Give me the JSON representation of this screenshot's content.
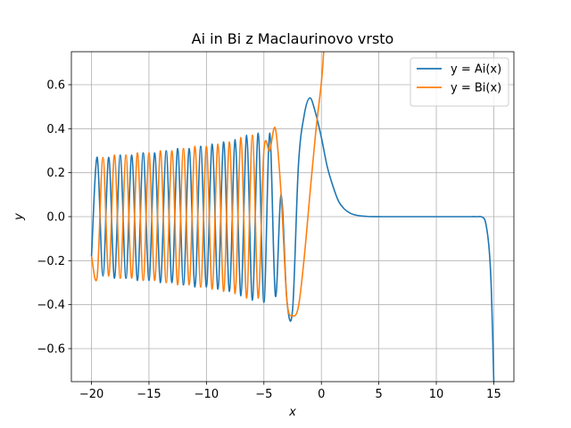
{
  "chart_data": {
    "type": "line",
    "title": "Ai in Bi z Maclaurinovo vrsto",
    "xlabel": "x",
    "ylabel": "y",
    "xlim": [
      -21.75,
      16.75
    ],
    "ylim": [
      -0.75,
      0.75
    ],
    "xticks": [
      -20,
      -15,
      -10,
      -5,
      0,
      5,
      10,
      15
    ],
    "yticks": [
      -0.6,
      -0.4,
      -0.2,
      0.0,
      0.2,
      0.4,
      0.6
    ],
    "xtick_labels": [
      "−20",
      "−15",
      "−10",
      "−5",
      "0",
      "5",
      "10",
      "15"
    ],
    "ytick_labels": [
      "−0.6",
      "−0.4",
      "−0.2",
      "0.0",
      "0.2",
      "0.4",
      "0.6"
    ],
    "grid": true,
    "legend_position": "top-right",
    "series": [
      {
        "name": "y = Ai(x)",
        "color": "#1f77b4",
        "x": [
          -20,
          -19.5,
          -19.0,
          -18.5,
          -18.0,
          -17.5,
          -17.0,
          -16.5,
          -16.0,
          -15.5,
          -15.0,
          -14.5,
          -14.0,
          -13.5,
          -13.0,
          -12.5,
          -12.0,
          -11.5,
          -11.0,
          -10.5,
          -10.0,
          -9.5,
          -9.0,
          -8.5,
          -8.0,
          -7.5,
          -7.0,
          -6.5,
          -6.0,
          -5.5,
          -5.0,
          -4.5,
          -4.0,
          -3.5,
          -3.0,
          -2.5,
          -2.0,
          -1.5,
          -1.0,
          -0.5,
          0.0,
          0.5,
          1.0,
          1.5,
          2.0,
          2.5,
          3.0,
          4.0,
          5.0,
          6.0,
          8.0,
          10.0,
          12.0,
          13.0,
          13.5,
          14.0,
          14.3,
          14.6,
          14.8,
          15.0
        ],
        "values": [
          -0.18,
          0.27,
          -0.27,
          0.27,
          -0.28,
          0.28,
          -0.28,
          0.28,
          -0.29,
          0.29,
          -0.29,
          0.29,
          -0.3,
          0.3,
          -0.3,
          0.31,
          -0.31,
          0.31,
          -0.32,
          0.32,
          -0.32,
          0.33,
          -0.33,
          0.34,
          -0.34,
          0.35,
          -0.36,
          0.37,
          -0.38,
          0.38,
          -0.39,
          0.38,
          -0.36,
          0.1,
          -0.38,
          -0.42,
          0.23,
          0.46,
          0.54,
          0.47,
          0.36,
          0.23,
          0.14,
          0.07,
          0.035,
          0.016,
          0.007,
          0.001,
          0.0001,
          0.0,
          0.0,
          0.0,
          0.0,
          0.0,
          0.0,
          -0.002,
          -0.03,
          -0.15,
          -0.35,
          -0.75
        ]
      },
      {
        "name": "y = Bi(x)",
        "color": "#ff7f0e",
        "x": [
          -20,
          -19.5,
          -19.0,
          -18.5,
          -18.0,
          -17.5,
          -17.0,
          -16.5,
          -16.0,
          -15.5,
          -15.0,
          -14.5,
          -14.0,
          -13.5,
          -13.0,
          -12.5,
          -12.0,
          -11.5,
          -11.0,
          -10.5,
          -10.0,
          -9.5,
          -9.0,
          -8.5,
          -8.0,
          -7.5,
          -7.0,
          -6.5,
          -6.0,
          -5.5,
          -5.0,
          -4.5,
          -4.0,
          -3.5,
          -3.0,
          -2.5,
          -2.0,
          -1.5,
          -1.0,
          -0.5,
          0.0,
          0.2
        ],
        "values": [
          -0.18,
          -0.27,
          0.27,
          -0.27,
          0.28,
          -0.28,
          0.28,
          -0.28,
          0.29,
          -0.29,
          0.29,
          -0.29,
          0.3,
          -0.3,
          0.3,
          -0.31,
          0.31,
          -0.31,
          0.32,
          -0.32,
          0.32,
          -0.33,
          0.33,
          -0.34,
          0.34,
          -0.35,
          0.36,
          -0.37,
          0.37,
          -0.37,
          0.3,
          0.3,
          0.4,
          0.1,
          -0.38,
          -0.45,
          -0.41,
          -0.19,
          0.1,
          0.38,
          0.61,
          0.75
        ]
      }
    ]
  }
}
